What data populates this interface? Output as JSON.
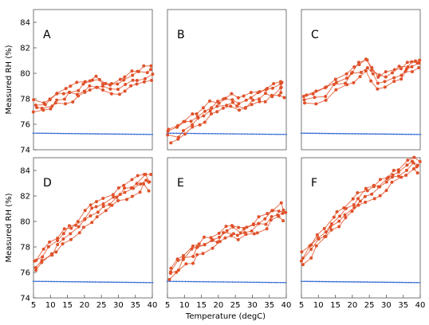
{
  "figure": {
    "xlabel": "Temperature (degC)",
    "ylabel": "Measured RH (%)"
  },
  "colors": {
    "measured": "#e0522b",
    "reference": "#3b6fd6",
    "axis": "#555555"
  },
  "chart_data": [
    {
      "type": "scatter",
      "panel": "A",
      "xlabel": "",
      "ylabel": "Measured RH (%)",
      "xlim": [
        5,
        40
      ],
      "ylim": [
        74,
        85
      ],
      "xticks": [],
      "yticks": [
        74,
        76,
        78,
        80,
        82,
        84
      ],
      "series": [
        {
          "x": [
            5.5,
            8,
            10,
            12,
            14,
            16,
            18,
            20,
            22,
            24,
            26,
            28,
            30,
            32,
            34,
            36,
            38,
            39.5
          ],
          "y": [
            77.1,
            77.3,
            77.6,
            77.9,
            78.1,
            78.3,
            78.5,
            78.7,
            78.9,
            79.0,
            78.8,
            78.6,
            78.9,
            79.2,
            79.4,
            79.6,
            79.8,
            80.0
          ]
        },
        {
          "x": [
            5,
            40
          ],
          "y": [
            75.3,
            75.2
          ]
        }
      ]
    },
    {
      "type": "scatter",
      "panel": "B",
      "xlabel": "",
      "ylabel": "",
      "xlim": [
        5,
        40
      ],
      "ylim": [
        74,
        85
      ],
      "xticks": [],
      "yticks": [],
      "series": [
        {
          "x": [
            5.5,
            8,
            10,
            12,
            14,
            16,
            18,
            20,
            22,
            24,
            26,
            28,
            30,
            32,
            34,
            36,
            38,
            39
          ],
          "y": [
            75.0,
            75.2,
            75.7,
            76.1,
            76.4,
            76.7,
            77.0,
            77.3,
            77.6,
            77.8,
            77.4,
            77.5,
            77.8,
            78.0,
            78.2,
            78.4,
            78.7,
            78.5
          ]
        },
        {
          "x": [
            5,
            40
          ],
          "y": [
            75.3,
            75.2
          ]
        }
      ]
    },
    {
      "type": "scatter",
      "panel": "C",
      "xlabel": "",
      "ylabel": "",
      "xlim": [
        5,
        40
      ],
      "ylim": [
        74,
        85
      ],
      "xticks": [],
      "yticks": [],
      "series": [
        {
          "x": [
            6,
            9,
            12,
            15,
            18,
            20,
            22,
            24,
            26,
            28,
            30,
            32,
            34,
            36,
            38,
            39.5
          ],
          "y": [
            77.8,
            78.0,
            78.4,
            78.9,
            79.4,
            79.8,
            80.3,
            80.6,
            79.8,
            79.3,
            79.5,
            79.8,
            80.0,
            80.3,
            80.6,
            80.6
          ]
        },
        {
          "x": [
            5,
            40
          ],
          "y": [
            75.3,
            75.2
          ]
        }
      ]
    },
    {
      "type": "scatter",
      "panel": "D",
      "xlabel": "",
      "ylabel": "Measured RH (%)",
      "xlim": [
        5,
        40
      ],
      "ylim": [
        74,
        85
      ],
      "xticks": [
        5,
        10,
        15,
        20,
        25,
        30,
        35,
        40
      ],
      "yticks": [
        74,
        76,
        78,
        80,
        82,
        84
      ],
      "series": [
        {
          "x": [
            5.5,
            8,
            10,
            12,
            14,
            16,
            18,
            20,
            22,
            24,
            26,
            28,
            30,
            32,
            34,
            36,
            38,
            39.5
          ],
          "y": [
            76.3,
            77.0,
            77.6,
            78.1,
            78.6,
            79.1,
            79.6,
            80.1,
            80.5,
            80.8,
            81.0,
            81.4,
            81.8,
            82.2,
            82.5,
            82.8,
            83.3,
            83.0
          ]
        },
        {
          "x": [
            5,
            40
          ],
          "y": [
            75.3,
            75.2
          ]
        }
      ]
    },
    {
      "type": "scatter",
      "panel": "E",
      "xlabel": "",
      "ylabel": "",
      "xlim": [
        5,
        40
      ],
      "ylim": [
        74,
        85
      ],
      "xticks": [
        5,
        10,
        15,
        20,
        25,
        30,
        35,
        40
      ],
      "yticks": [],
      "series": [
        {
          "x": [
            5.5,
            8,
            10,
            12,
            14,
            16,
            18,
            20,
            22,
            24,
            26,
            28,
            30,
            32,
            34,
            36,
            38,
            39.5
          ],
          "y": [
            75.9,
            76.4,
            76.9,
            77.3,
            77.7,
            78.0,
            78.3,
            78.6,
            78.9,
            79.1,
            78.9,
            79.1,
            79.4,
            79.7,
            80.0,
            80.3,
            80.7,
            80.5
          ]
        },
        {
          "x": [
            5,
            40
          ],
          "y": [
            75.3,
            75.2
          ]
        }
      ]
    },
    {
      "type": "scatter",
      "panel": "F",
      "xlabel": "",
      "ylabel": "",
      "xlim": [
        5,
        40
      ],
      "ylim": [
        74,
        85
      ],
      "xticks": [
        5,
        10,
        15,
        20,
        25,
        30,
        35,
        40
      ],
      "yticks": [],
      "series": [
        {
          "x": [
            5.5,
            8,
            10,
            12,
            14,
            16,
            18,
            20,
            22,
            24,
            26,
            28,
            30,
            32,
            34,
            36,
            38,
            39.5
          ],
          "y": [
            76.9,
            77.7,
            78.4,
            79.0,
            79.6,
            80.1,
            80.6,
            81.1,
            81.6,
            82.0,
            82.3,
            82.6,
            83.0,
            83.3,
            83.6,
            84.0,
            84.4,
            84.1
          ]
        },
        {
          "x": [
            5,
            40
          ],
          "y": [
            75.3,
            75.2
          ]
        }
      ]
    }
  ]
}
